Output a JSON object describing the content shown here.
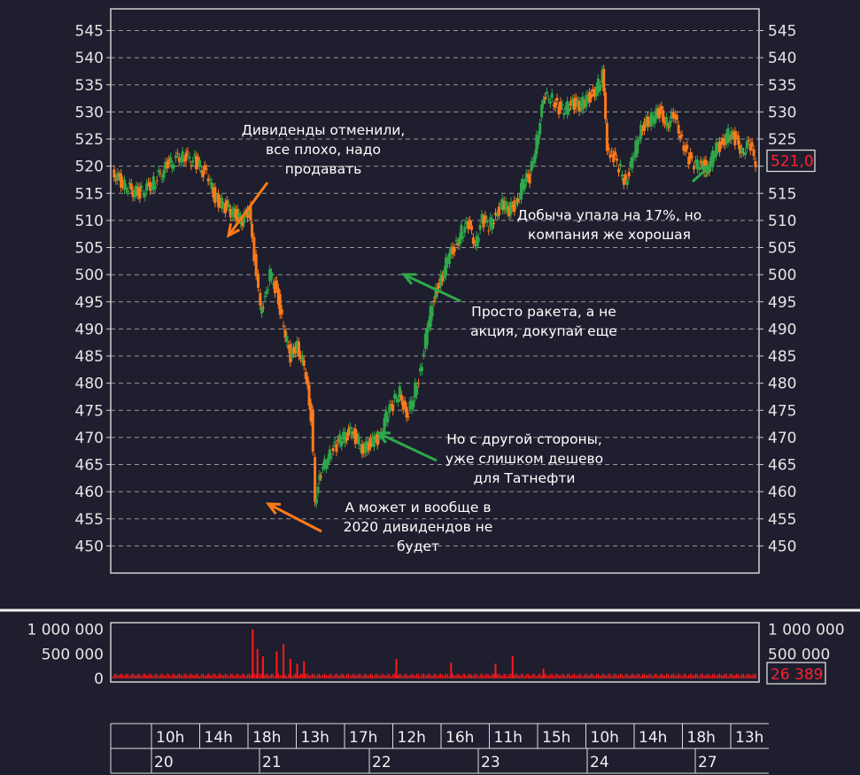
{
  "chart_data": [
    {
      "type": "candlestick",
      "series_colors": {
        "up": "#2ea84a",
        "down": "#ff7a1a"
      },
      "ylim": [
        445,
        549
      ],
      "yticks": [
        450,
        455,
        460,
        465,
        470,
        475,
        480,
        485,
        490,
        495,
        500,
        505,
        510,
        515,
        520,
        525,
        530,
        535,
        540,
        545
      ],
      "last_value_label": "521,0",
      "last_value_color": "#ff2030",
      "days": [
        "20",
        "21",
        "22",
        "23",
        "24",
        "27"
      ],
      "price_path": [
        [
          0,
          519
        ],
        [
          2,
          516
        ],
        [
          4,
          515
        ],
        [
          6,
          517
        ],
        [
          8,
          520
        ],
        [
          10,
          522
        ],
        [
          12,
          521
        ],
        [
          14,
          518
        ],
        [
          15,
          514
        ],
        [
          17,
          512
        ],
        [
          19,
          510
        ],
        [
          20,
          512
        ],
        [
          20.4,
          508
        ],
        [
          21,
          499
        ],
        [
          21.6,
          494
        ],
        [
          22.5,
          496
        ],
        [
          23,
          500
        ],
        [
          24,
          497
        ],
        [
          25,
          490
        ],
        [
          26,
          485
        ],
        [
          27,
          487
        ],
        [
          28,
          483
        ],
        [
          29,
          474
        ],
        [
          29.6,
          459
        ],
        [
          30.5,
          463
        ],
        [
          31.5,
          467
        ],
        [
          32.5,
          468
        ],
        [
          33.5,
          470
        ],
        [
          35,
          471
        ],
        [
          36.5,
          468
        ],
        [
          38,
          469
        ],
        [
          39,
          470
        ],
        [
          40,
          474
        ],
        [
          41,
          476
        ],
        [
          42,
          479
        ],
        [
          43,
          473
        ],
        [
          44,
          478
        ],
        [
          45,
          482
        ],
        [
          46,
          490
        ],
        [
          47,
          496
        ],
        [
          48,
          499
        ],
        [
          49,
          503
        ],
        [
          50,
          505
        ],
        [
          51,
          508
        ],
        [
          52,
          509
        ],
        [
          53,
          506
        ],
        [
          54,
          510
        ],
        [
          55,
          509
        ],
        [
          56,
          511
        ],
        [
          57,
          513
        ],
        [
          58,
          512
        ],
        [
          59,
          513
        ],
        [
          60,
          517
        ],
        [
          61,
          518
        ],
        [
          62,
          525
        ],
        [
          63,
          532
        ],
        [
          64,
          533
        ],
        [
          65,
          531
        ],
        [
          66,
          530
        ],
        [
          67,
          532
        ],
        [
          68,
          531
        ],
        [
          69,
          532
        ],
        [
          70,
          533
        ],
        [
          71,
          535
        ],
        [
          71.6,
          537
        ],
        [
          72.3,
          524
        ],
        [
          73,
          522
        ],
        [
          74,
          520
        ],
        [
          75,
          517
        ],
        [
          76,
          521
        ],
        [
          77,
          526
        ],
        [
          78,
          528
        ],
        [
          79,
          529
        ],
        [
          80,
          530
        ],
        [
          81,
          528
        ],
        [
          82,
          529
        ],
        [
          83,
          526
        ],
        [
          84,
          522
        ],
        [
          85,
          520
        ],
        [
          86,
          521
        ],
        [
          87,
          519
        ],
        [
          88,
          523
        ],
        [
          89,
          524
        ],
        [
          90,
          526
        ],
        [
          91,
          525
        ],
        [
          92,
          523
        ],
        [
          93,
          524
        ],
        [
          94,
          521
        ]
      ],
      "volume": {
        "ylim": [
          0,
          1100000
        ],
        "yticks": [
          {
            "v": 1000000,
            "t": "1 000 000"
          },
          {
            "v": 500000,
            "t": "500 000"
          },
          {
            "v": 0,
            "t": "0"
          }
        ],
        "color": "#ff1a1a",
        "last_value_label": "26 389",
        "spikes": [
          [
            20.5,
            1000000
          ],
          [
            21.2,
            600000
          ],
          [
            22,
            450000
          ],
          [
            24,
            550000
          ],
          [
            25,
            700000
          ],
          [
            26,
            400000
          ],
          [
            27,
            300000
          ],
          [
            28,
            350000
          ],
          [
            41.5,
            400000
          ],
          [
            49.5,
            320000
          ],
          [
            56,
            300000
          ],
          [
            58.5,
            460000
          ],
          [
            63,
            200000
          ]
        ]
      },
      "x_hours": [
        "10h",
        "14h",
        "18h",
        "13h",
        "17h",
        "12h",
        "16h",
        "11h",
        "15h",
        "10h",
        "14h",
        "18h",
        "13h"
      ],
      "annotations": [
        {
          "lines": [
            "Дивиденды отменили,",
            "все плохо, надо",
            "продавать"
          ]
        },
        {
          "lines": [
            "Добыча упала на 17%, но",
            "компания же хорошая"
          ]
        },
        {
          "lines": [
            "Просто ракета, а не",
            "акция, докупай еще"
          ]
        },
        {
          "lines": [
            "Но с другой стороны,",
            "уже слишком дешево",
            "для Татнефти"
          ]
        },
        {
          "lines": [
            "А может и вообще в",
            "2020 дивидендов не",
            "будет"
          ]
        }
      ]
    }
  ]
}
